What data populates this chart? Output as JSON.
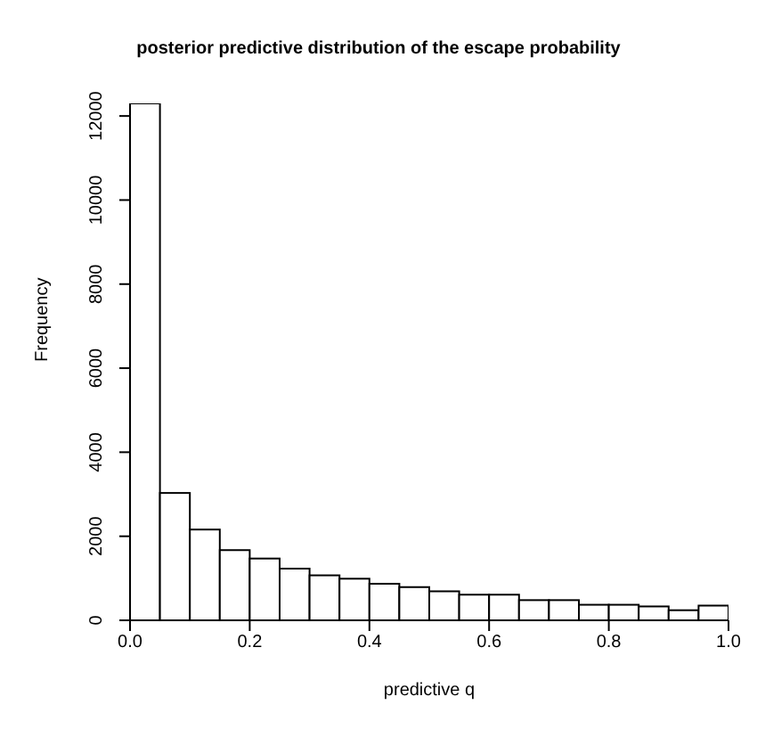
{
  "chart_data": {
    "type": "histogram",
    "title": "posterior predictive distribution of the escape probability",
    "xlabel": "predictive q",
    "ylabel": "Frequency",
    "bins": [
      0,
      0.05,
      0.1,
      0.15,
      0.2,
      0.25,
      0.3,
      0.35,
      0.4,
      0.45,
      0.5,
      0.55,
      0.6,
      0.65,
      0.7,
      0.75,
      0.8,
      0.85,
      0.9,
      0.95,
      1.0
    ],
    "values": [
      12300,
      3030,
      2160,
      1670,
      1470,
      1230,
      1070,
      990,
      870,
      790,
      690,
      610,
      610,
      480,
      480,
      370,
      370,
      330,
      240,
      350
    ],
    "color": "#ffffff",
    "xlim": [
      0,
      1
    ],
    "xticks": [
      {
        "value": 0,
        "label": "0.0"
      },
      0.2,
      0.4,
      0.6,
      0.8,
      {
        "value": 1,
        "label": "1.0"
      }
    ],
    "ylim": [
      0,
      12300
    ],
    "yticks": [
      0,
      2000,
      4000,
      6000,
      8000,
      10000,
      12000
    ],
    "grid": false
  }
}
